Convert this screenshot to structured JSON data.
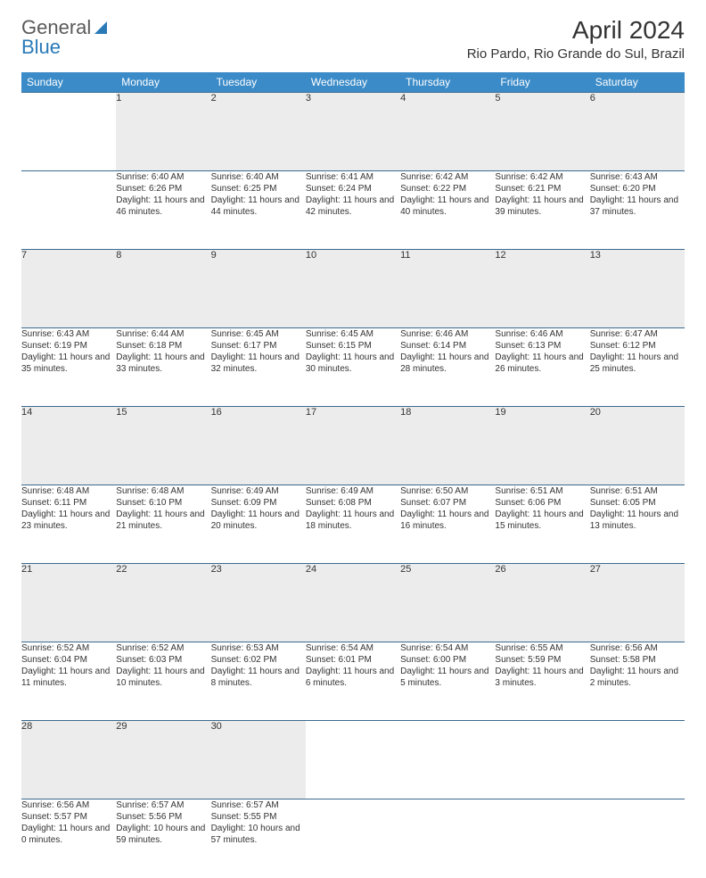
{
  "logo": {
    "text1": "General",
    "text2": "Blue"
  },
  "title": "April 2024",
  "location": "Rio Pardo, Rio Grande do Sul, Brazil",
  "colors": {
    "header_bg": "#3b8bc8",
    "header_text": "#ffffff",
    "row_border": "#3b6a8f",
    "daynum_bg": "#ececec",
    "logo_gray": "#5a5a5a",
    "logo_blue": "#2a7ab8"
  },
  "day_headers": [
    "Sunday",
    "Monday",
    "Tuesday",
    "Wednesday",
    "Thursday",
    "Friday",
    "Saturday"
  ],
  "weeks": [
    [
      {
        "n": "",
        "sr": "",
        "ss": "",
        "dl": ""
      },
      {
        "n": "1",
        "sr": "Sunrise: 6:40 AM",
        "ss": "Sunset: 6:26 PM",
        "dl": "Daylight: 11 hours and 46 minutes."
      },
      {
        "n": "2",
        "sr": "Sunrise: 6:40 AM",
        "ss": "Sunset: 6:25 PM",
        "dl": "Daylight: 11 hours and 44 minutes."
      },
      {
        "n": "3",
        "sr": "Sunrise: 6:41 AM",
        "ss": "Sunset: 6:24 PM",
        "dl": "Daylight: 11 hours and 42 minutes."
      },
      {
        "n": "4",
        "sr": "Sunrise: 6:42 AM",
        "ss": "Sunset: 6:22 PM",
        "dl": "Daylight: 11 hours and 40 minutes."
      },
      {
        "n": "5",
        "sr": "Sunrise: 6:42 AM",
        "ss": "Sunset: 6:21 PM",
        "dl": "Daylight: 11 hours and 39 minutes."
      },
      {
        "n": "6",
        "sr": "Sunrise: 6:43 AM",
        "ss": "Sunset: 6:20 PM",
        "dl": "Daylight: 11 hours and 37 minutes."
      }
    ],
    [
      {
        "n": "7",
        "sr": "Sunrise: 6:43 AM",
        "ss": "Sunset: 6:19 PM",
        "dl": "Daylight: 11 hours and 35 minutes."
      },
      {
        "n": "8",
        "sr": "Sunrise: 6:44 AM",
        "ss": "Sunset: 6:18 PM",
        "dl": "Daylight: 11 hours and 33 minutes."
      },
      {
        "n": "9",
        "sr": "Sunrise: 6:45 AM",
        "ss": "Sunset: 6:17 PM",
        "dl": "Daylight: 11 hours and 32 minutes."
      },
      {
        "n": "10",
        "sr": "Sunrise: 6:45 AM",
        "ss": "Sunset: 6:15 PM",
        "dl": "Daylight: 11 hours and 30 minutes."
      },
      {
        "n": "11",
        "sr": "Sunrise: 6:46 AM",
        "ss": "Sunset: 6:14 PM",
        "dl": "Daylight: 11 hours and 28 minutes."
      },
      {
        "n": "12",
        "sr": "Sunrise: 6:46 AM",
        "ss": "Sunset: 6:13 PM",
        "dl": "Daylight: 11 hours and 26 minutes."
      },
      {
        "n": "13",
        "sr": "Sunrise: 6:47 AM",
        "ss": "Sunset: 6:12 PM",
        "dl": "Daylight: 11 hours and 25 minutes."
      }
    ],
    [
      {
        "n": "14",
        "sr": "Sunrise: 6:48 AM",
        "ss": "Sunset: 6:11 PM",
        "dl": "Daylight: 11 hours and 23 minutes."
      },
      {
        "n": "15",
        "sr": "Sunrise: 6:48 AM",
        "ss": "Sunset: 6:10 PM",
        "dl": "Daylight: 11 hours and 21 minutes."
      },
      {
        "n": "16",
        "sr": "Sunrise: 6:49 AM",
        "ss": "Sunset: 6:09 PM",
        "dl": "Daylight: 11 hours and 20 minutes."
      },
      {
        "n": "17",
        "sr": "Sunrise: 6:49 AM",
        "ss": "Sunset: 6:08 PM",
        "dl": "Daylight: 11 hours and 18 minutes."
      },
      {
        "n": "18",
        "sr": "Sunrise: 6:50 AM",
        "ss": "Sunset: 6:07 PM",
        "dl": "Daylight: 11 hours and 16 minutes."
      },
      {
        "n": "19",
        "sr": "Sunrise: 6:51 AM",
        "ss": "Sunset: 6:06 PM",
        "dl": "Daylight: 11 hours and 15 minutes."
      },
      {
        "n": "20",
        "sr": "Sunrise: 6:51 AM",
        "ss": "Sunset: 6:05 PM",
        "dl": "Daylight: 11 hours and 13 minutes."
      }
    ],
    [
      {
        "n": "21",
        "sr": "Sunrise: 6:52 AM",
        "ss": "Sunset: 6:04 PM",
        "dl": "Daylight: 11 hours and 11 minutes."
      },
      {
        "n": "22",
        "sr": "Sunrise: 6:52 AM",
        "ss": "Sunset: 6:03 PM",
        "dl": "Daylight: 11 hours and 10 minutes."
      },
      {
        "n": "23",
        "sr": "Sunrise: 6:53 AM",
        "ss": "Sunset: 6:02 PM",
        "dl": "Daylight: 11 hours and 8 minutes."
      },
      {
        "n": "24",
        "sr": "Sunrise: 6:54 AM",
        "ss": "Sunset: 6:01 PM",
        "dl": "Daylight: 11 hours and 6 minutes."
      },
      {
        "n": "25",
        "sr": "Sunrise: 6:54 AM",
        "ss": "Sunset: 6:00 PM",
        "dl": "Daylight: 11 hours and 5 minutes."
      },
      {
        "n": "26",
        "sr": "Sunrise: 6:55 AM",
        "ss": "Sunset: 5:59 PM",
        "dl": "Daylight: 11 hours and 3 minutes."
      },
      {
        "n": "27",
        "sr": "Sunrise: 6:56 AM",
        "ss": "Sunset: 5:58 PM",
        "dl": "Daylight: 11 hours and 2 minutes."
      }
    ],
    [
      {
        "n": "28",
        "sr": "Sunrise: 6:56 AM",
        "ss": "Sunset: 5:57 PM",
        "dl": "Daylight: 11 hours and 0 minutes."
      },
      {
        "n": "29",
        "sr": "Sunrise: 6:57 AM",
        "ss": "Sunset: 5:56 PM",
        "dl": "Daylight: 10 hours and 59 minutes."
      },
      {
        "n": "30",
        "sr": "Sunrise: 6:57 AM",
        "ss": "Sunset: 5:55 PM",
        "dl": "Daylight: 10 hours and 57 minutes."
      },
      {
        "n": "",
        "sr": "",
        "ss": "",
        "dl": ""
      },
      {
        "n": "",
        "sr": "",
        "ss": "",
        "dl": ""
      },
      {
        "n": "",
        "sr": "",
        "ss": "",
        "dl": ""
      },
      {
        "n": "",
        "sr": "",
        "ss": "",
        "dl": ""
      }
    ]
  ]
}
